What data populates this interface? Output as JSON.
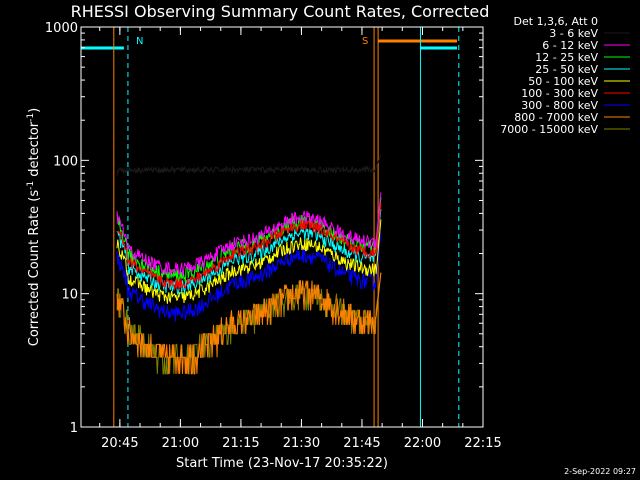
{
  "chart_data": {
    "type": "line",
    "title": "RHESSI Observing Summary Count Rates, Corrected",
    "xlabel": "Start Time (23-Nov-17 20:35:22)",
    "ylabel": "Corrected Count Rate (s",
    "ylabel_sup": "-1",
    "ylabel_mid": " detector",
    "ylabel_sup2": "-1",
    "ylabel_end": ")",
    "yscale": "log",
    "ylim": [
      1,
      1000
    ],
    "xlim": [
      "20:35",
      "22:15"
    ],
    "x_ticks": [
      "20:45",
      "21:00",
      "21:15",
      "21:30",
      "21:45",
      "22:00",
      "22:15"
    ],
    "y_ticks": [
      "1",
      "10",
      "100",
      "1000"
    ],
    "legend_title": "Det 1,3,6, Att 0",
    "legend_placement": "right",
    "series": [
      {
        "name": "3 - 6 keV",
        "color": "#000000",
        "base": 85,
        "hump": 0.05,
        "noise": 0.05
      },
      {
        "name": "6 - 12 keV",
        "color": "#ff00ff",
        "base": 24,
        "hump": 0.4,
        "noise": 0.12
      },
      {
        "name": "12 - 25 keV",
        "color": "#00ff00",
        "base": 22,
        "hump": 0.42,
        "noise": 0.13
      },
      {
        "name": "25 - 50 keV",
        "color": "#00ffff",
        "base": 18,
        "hump": 0.42,
        "noise": 0.12
      },
      {
        "name": "50 - 100 keV",
        "color": "#ffff00",
        "base": 15,
        "hump": 0.42,
        "noise": 0.12
      },
      {
        "name": "100 - 300 keV",
        "color": "#ff0000",
        "base": 20,
        "hump": 0.45,
        "noise": 0.1
      },
      {
        "name": "300 - 800 keV",
        "color": "#0000ff",
        "base": 12,
        "hump": 0.45,
        "noise": 0.14
      },
      {
        "name": "800 - 7000 keV",
        "color": "#ff8000",
        "base": 6,
        "hump": 0.5,
        "noise": 0.25
      },
      {
        "name": "7000 - 15000 keV",
        "color": "#808000",
        "base": 6,
        "hump": 0.5,
        "noise": 0.25
      }
    ],
    "data_range": [
      "20:44",
      "21:51"
    ],
    "markers": [
      {
        "label": "N",
        "time": "20:47",
        "color": "#00ffff",
        "style": "dashed"
      },
      {
        "label": "S",
        "time": "21:48",
        "color": "#ff8000",
        "style": "solid"
      }
    ],
    "footer": "2-Sep-2022 09:27"
  }
}
